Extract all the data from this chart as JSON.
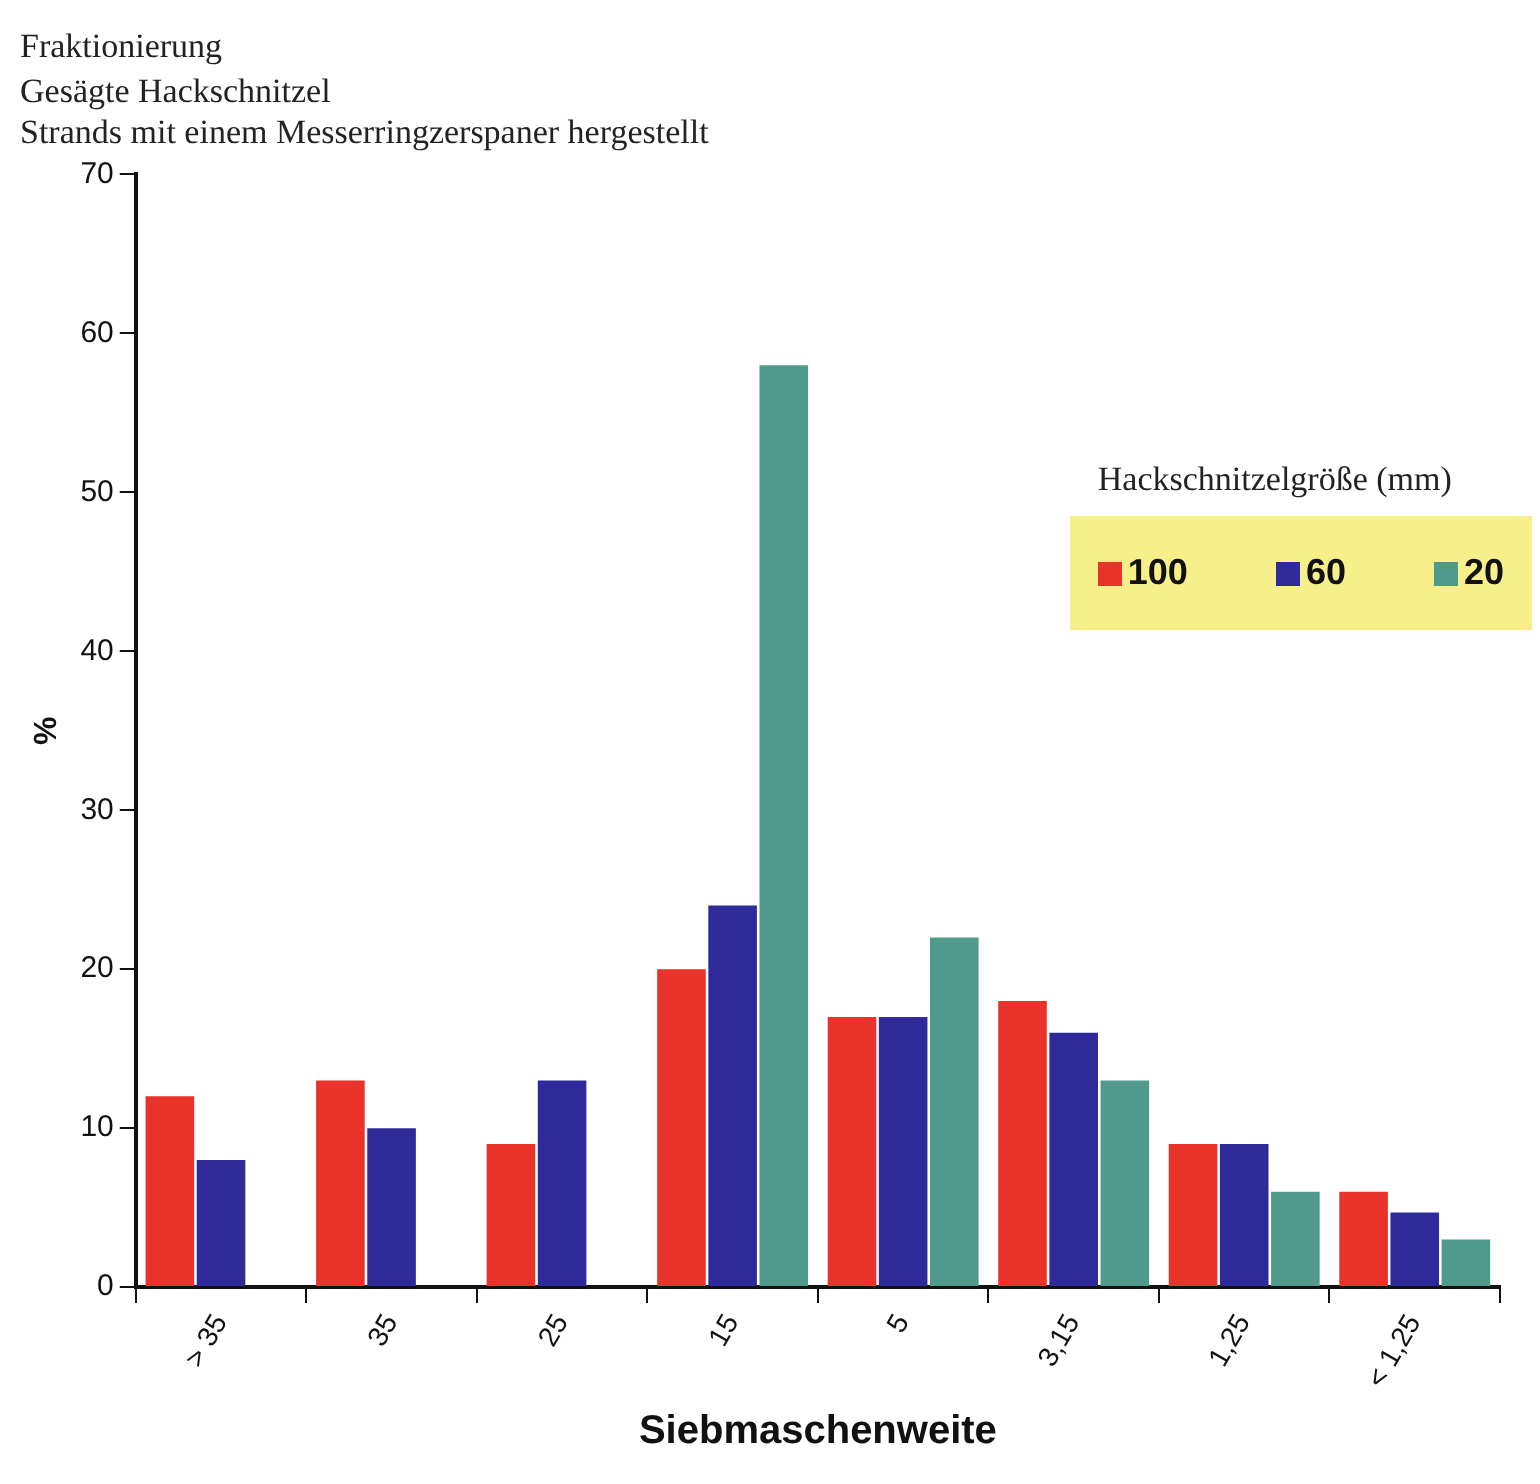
{
  "chart_data": {
    "type": "bar",
    "title": "Fraktionierung",
    "subtitle": "Gesägte Hackschnitzel\nStrands mit einem Messerringzerspaner hergestellt",
    "xlabel": "Siebmaschenweite",
    "ylabel": "%",
    "legend_title": "Hackschnitzelgröße (mm)",
    "legend": "right",
    "grid": false,
    "categories": [
      "> 35",
      "35",
      "25",
      "15",
      "5",
      "3,15",
      "1,25",
      "< 1,25"
    ],
    "series": [
      {
        "name": "100",
        "color": "#e8322a",
        "values": [
          12,
          13,
          9,
          20,
          17,
          18,
          9,
          6
        ]
      },
      {
        "name": "60",
        "color": "#2e2a9a",
        "values": [
          8,
          10,
          13,
          24,
          17,
          16,
          9,
          4.7
        ]
      },
      {
        "name": "20",
        "color": "#4f9a8c",
        "values": [
          null,
          null,
          null,
          58,
          22,
          13,
          6,
          3
        ]
      }
    ],
    "ylim": [
      0,
      70
    ],
    "yticks": [
      0,
      10,
      20,
      30,
      40,
      50,
      60,
      70
    ]
  }
}
